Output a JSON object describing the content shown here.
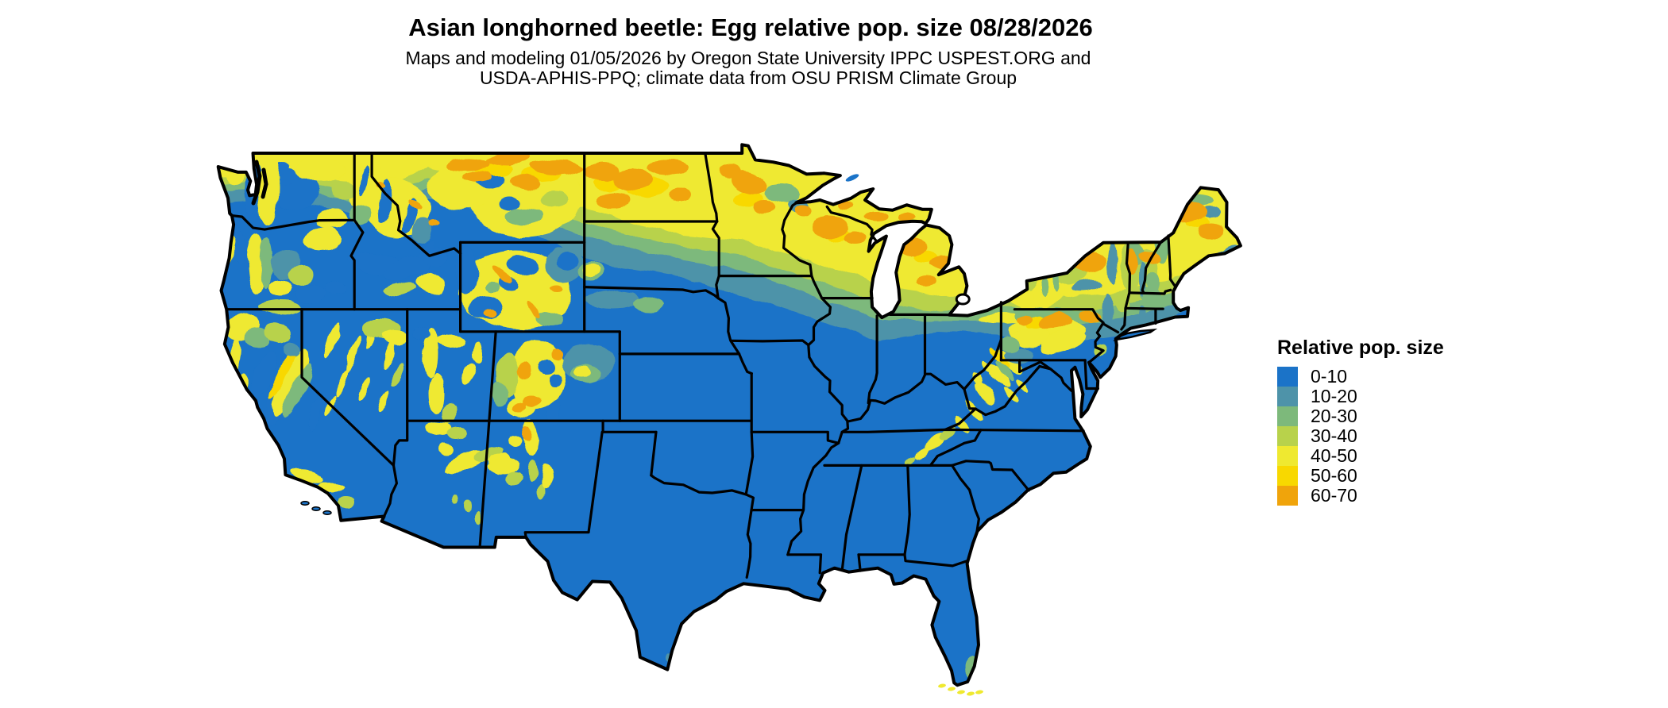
{
  "header": {
    "title": "Asian longhorned beetle: Egg relative pop. size 08/28/2026",
    "subtitle_line1": "Maps and modeling 01/05/2026 by Oregon State University IPPC USPEST.ORG and",
    "subtitle_line2": "USDA-APHIS-PPQ; climate data from OSU PRISM Climate Group"
  },
  "legend": {
    "title": "Relative pop. size",
    "items": [
      {
        "label": "0-10",
        "color": "#1b73c8"
      },
      {
        "label": "10-20",
        "color": "#4e93a9"
      },
      {
        "label": "20-30",
        "color": "#7db97b"
      },
      {
        "label": "30-40",
        "color": "#b8d24b"
      },
      {
        "label": "40-50",
        "color": "#efe930"
      },
      {
        "label": "50-60",
        "color": "#f8d800"
      },
      {
        "label": "60-70",
        "color": "#f0a40b"
      }
    ]
  },
  "map": {
    "border_color": "#000000",
    "water_color": "#ffffff"
  }
}
